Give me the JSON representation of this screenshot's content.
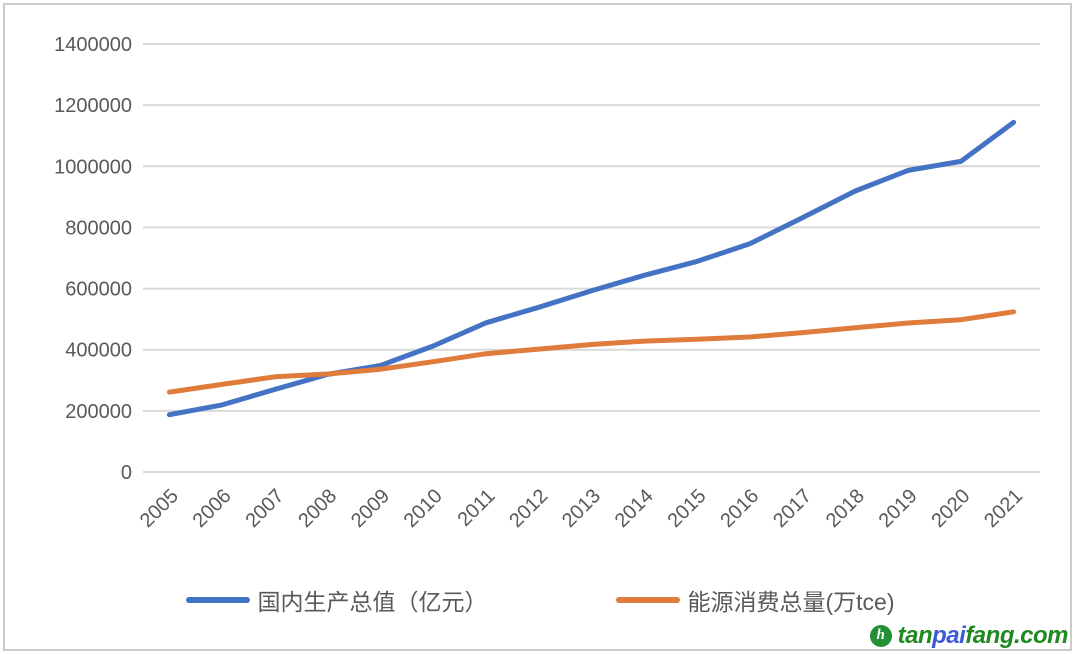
{
  "chart_data": {
    "type": "line",
    "categories": [
      "2005",
      "2006",
      "2007",
      "2008",
      "2009",
      "2010",
      "2011",
      "2012",
      "2013",
      "2014",
      "2015",
      "2016",
      "2017",
      "2018",
      "2019",
      "2020",
      "2021"
    ],
    "series": [
      {
        "name": "国内生产总值（亿元）",
        "color": "#4472c4",
        "values": [
          187318,
          219438,
          270092,
          319244,
          348517,
          412119,
          487940,
          538580,
          592963,
          643563,
          688858,
          746395,
          832035,
          919281,
          986515,
          1015986,
          1143670
        ]
      },
      {
        "name": "能源消费总量(万tce)",
        "color": "#df7b3b",
        "values": [
          261369,
          286467,
          311442,
          320611,
          336126,
          360648,
          387043,
          402138,
          416913,
          428334,
          434113,
          441492,
          455827,
          471925,
          487488,
          498314,
          524000
        ]
      }
    ],
    "ylim": [
      0,
      1400000
    ],
    "yticks": [
      0,
      200000,
      400000,
      600000,
      800000,
      1000000,
      1200000,
      1400000
    ],
    "grid": "horizontal",
    "legend_position": "bottom"
  },
  "style": {
    "gridline_color": "#d9d9d9",
    "tick_label_color": "#595959",
    "frame_border_color": "#cbcbcb",
    "line_width": 5
  },
  "watermark": {
    "logo_glyph": "h",
    "logo_color": "#249034",
    "parts": [
      {
        "text": "tan",
        "color": "#1f8a1f"
      },
      {
        "text": "pai",
        "color": "#3c5bd8"
      },
      {
        "text": "fang.com",
        "color": "#1f8a1f"
      }
    ]
  }
}
